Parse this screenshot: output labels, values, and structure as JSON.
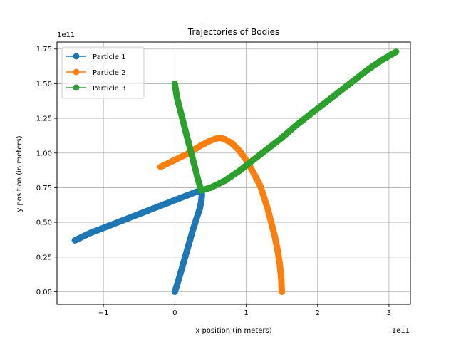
{
  "chart_data": {
    "type": "line",
    "title": "Trajectories of Bodies",
    "xlabel": "x position (in meters)",
    "ylabel": "y position (in meters)",
    "x_exponent_label": "1e11",
    "y_exponent_label": "1e11",
    "xlim": [
      -1.65,
      3.3
    ],
    "ylim": [
      -0.09,
      1.8
    ],
    "x_ticks": [
      -1,
      0,
      1,
      2,
      3
    ],
    "x_tick_labels": [
      "−1",
      "0",
      "1",
      "2",
      "3"
    ],
    "y_ticks": [
      0.0,
      0.25,
      0.5,
      0.75,
      1.0,
      1.25,
      1.5,
      1.75
    ],
    "y_tick_labels": [
      "0.00",
      "0.25",
      "0.50",
      "0.75",
      "1.00",
      "1.25",
      "1.50",
      "1.75"
    ],
    "grid": true,
    "legend_position": "top-left",
    "series": [
      {
        "name": "Particle 1",
        "color": "#1f77b4",
        "x": [
          0.0,
          0.05,
          0.1,
          0.15,
          0.2,
          0.25,
          0.3,
          0.35,
          0.37,
          0.38,
          0.37,
          0.3,
          0.2,
          0.1,
          0.0,
          -0.2,
          -0.4,
          -0.6,
          -0.8,
          -1.0,
          -1.2,
          -1.4
        ],
        "y": [
          0.0,
          0.08,
          0.17,
          0.26,
          0.35,
          0.44,
          0.52,
          0.6,
          0.65,
          0.7,
          0.73,
          0.72,
          0.7,
          0.68,
          0.66,
          0.62,
          0.58,
          0.54,
          0.5,
          0.46,
          0.42,
          0.37
        ]
      },
      {
        "name": "Particle 2",
        "color": "#ff7f0e",
        "x": [
          1.5,
          1.49,
          1.47,
          1.44,
          1.4,
          1.35,
          1.3,
          1.25,
          1.2,
          1.1,
          1.0,
          0.9,
          0.8,
          0.7,
          0.62,
          0.5,
          0.35,
          0.2,
          0.0,
          -0.2
        ],
        "y": [
          0.0,
          0.1,
          0.2,
          0.3,
          0.4,
          0.5,
          0.6,
          0.68,
          0.76,
          0.86,
          0.95,
          1.02,
          1.07,
          1.1,
          1.11,
          1.09,
          1.05,
          1.0,
          0.95,
          0.9
        ]
      },
      {
        "name": "Particle 3",
        "color": "#2ca02c",
        "x": [
          0.0,
          0.03,
          0.08,
          0.13,
          0.18,
          0.23,
          0.28,
          0.33,
          0.37,
          0.5,
          0.7,
          0.9,
          1.1,
          1.3,
          1.5,
          1.7,
          1.9,
          2.1,
          2.3,
          2.5,
          2.7,
          2.9,
          3.1
        ],
        "y": [
          1.5,
          1.4,
          1.3,
          1.2,
          1.1,
          1.0,
          0.9,
          0.8,
          0.73,
          0.75,
          0.8,
          0.87,
          0.95,
          1.03,
          1.11,
          1.2,
          1.28,
          1.36,
          1.44,
          1.52,
          1.6,
          1.67,
          1.73
        ]
      }
    ]
  }
}
